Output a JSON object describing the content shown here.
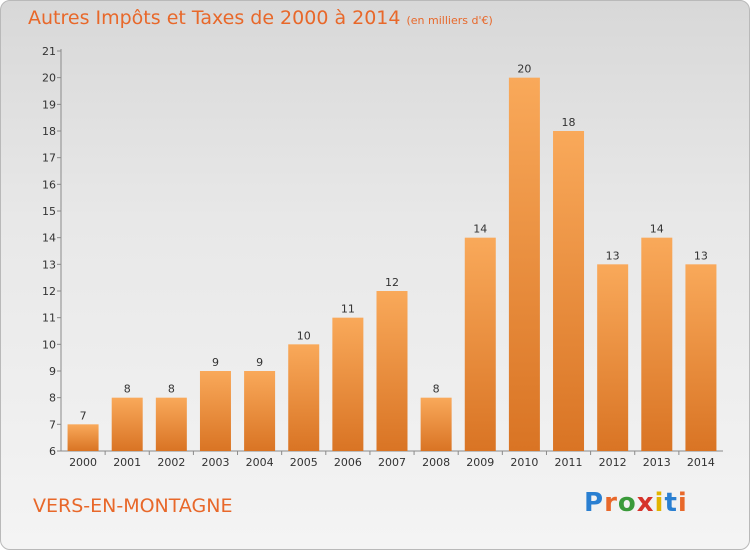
{
  "header": {
    "title": "Autres Impôts et Taxes de 2000 à 2014",
    "unit": "(en milliers d'€)"
  },
  "footer": {
    "commune": "VERS-EN-MONTAGNE",
    "logo_text": "Proxiti"
  },
  "colors": {
    "accent": "#e8682a",
    "bar_light": "#f9a95a",
    "bar_dark": "#d97424",
    "axis": "#8a8a8a",
    "text": "#333333"
  },
  "chart_data": {
    "type": "bar",
    "title": "Autres Impôts et Taxes de 2000 à 2014",
    "subtitle": "(en milliers d'€)",
    "xlabel": "",
    "ylabel": "",
    "categories": [
      "2000",
      "2001",
      "2002",
      "2003",
      "2004",
      "2005",
      "2006",
      "2007",
      "2008",
      "2009",
      "2010",
      "2011",
      "2012",
      "2013",
      "2014"
    ],
    "values": [
      7,
      8,
      8,
      9,
      9,
      10,
      11,
      12,
      8,
      14,
      20,
      18,
      13,
      14,
      13
    ],
    "ylim": [
      6,
      21
    ],
    "yticks": [
      6,
      7,
      8,
      9,
      10,
      11,
      12,
      13,
      14,
      15,
      16,
      17,
      18,
      19,
      20,
      21
    ],
    "grid": false,
    "legend": "none"
  }
}
